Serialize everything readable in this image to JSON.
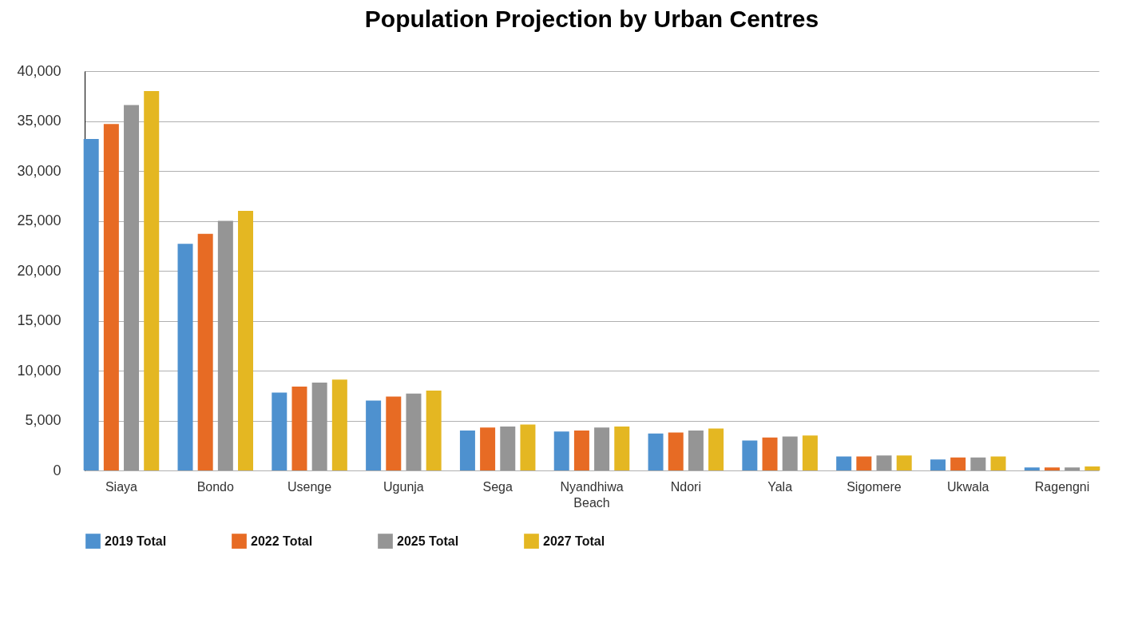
{
  "chart_data": {
    "type": "bar",
    "title": "Population Projection by Urban Centres",
    "categories": [
      "Siaya",
      "Bondo",
      "Usenge",
      "Ugunja",
      "Sega",
      "Nyandhiwa Beach",
      "Ndori",
      "Yala",
      "Sigomere",
      "Ukwala",
      "Ragengni"
    ],
    "series": [
      {
        "name": "2019 Total",
        "color": "#4e91cf",
        "values": [
          33200,
          22700,
          7800,
          7000,
          4000,
          3900,
          3700,
          3000,
          1400,
          1100,
          300
        ]
      },
      {
        "name": "2022 Total",
        "color": "#e76b24",
        "values": [
          34700,
          23700,
          8400,
          7400,
          4300,
          4000,
          3800,
          3300,
          1400,
          1300,
          300
        ]
      },
      {
        "name": "2025 Total",
        "color": "#959595",
        "values": [
          36600,
          25000,
          8800,
          7700,
          4400,
          4300,
          4000,
          3400,
          1500,
          1300,
          300
        ]
      },
      {
        "name": "2027 Total",
        "color": "#e4b722",
        "values": [
          38000,
          26000,
          9100,
          8000,
          4600,
          4400,
          4200,
          3500,
          1500,
          1400,
          400
        ]
      }
    ],
    "ylim": [
      0,
      40000
    ],
    "yticks": [
      0,
      {
        "value": 5000,
        "label": "5,000"
      },
      {
        "value": 10000,
        "label": "10,000"
      },
      {
        "value": 15000,
        "label": "15,000"
      },
      {
        "value": 20000,
        "label": "20,000"
      },
      {
        "value": 25000,
        "label": "25,000"
      },
      {
        "value": 30000,
        "label": "30,000"
      },
      {
        "value": 35000,
        "label": "35,000"
      },
      {
        "value": 40000,
        "label": "40,000"
      }
    ],
    "grid": "y",
    "legend": "bottom"
  }
}
